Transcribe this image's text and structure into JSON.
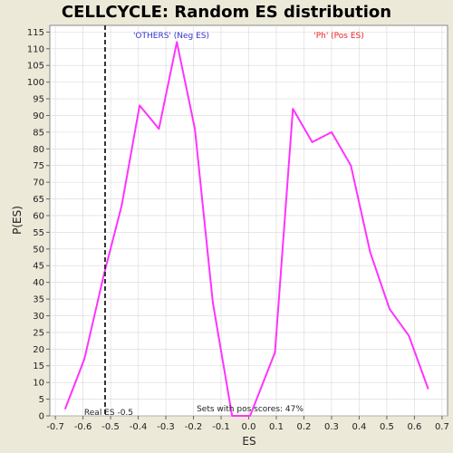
{
  "chart_data": {
    "type": "line",
    "title": "CELLCYCLE: Random ES distribution",
    "xlabel": "ES",
    "ylabel": "P(ES)",
    "xlim": [
      -0.72,
      0.72
    ],
    "ylim": [
      0,
      117
    ],
    "x_ticks": [
      -0.7,
      -0.6,
      -0.5,
      -0.4,
      -0.3,
      -0.2,
      -0.1,
      0.0,
      0.1,
      0.2,
      0.3,
      0.4,
      0.5,
      0.6,
      0.7
    ],
    "y_ticks": [
      0,
      5,
      10,
      15,
      20,
      25,
      30,
      35,
      40,
      45,
      50,
      55,
      60,
      65,
      70,
      75,
      80,
      85,
      90,
      95,
      100,
      105,
      110,
      115
    ],
    "grid": true,
    "series": [
      {
        "color": "#ff33ff",
        "x": [
          -0.665,
          -0.595,
          -0.525,
          -0.46,
          -0.395,
          -0.325,
          -0.26,
          -0.195,
          -0.13,
          -0.06,
          0.005,
          0.095,
          0.16,
          0.23,
          0.3,
          0.37,
          0.44,
          0.51,
          0.58,
          0.65
        ],
        "y": [
          2,
          17,
          42,
          63,
          93,
          86,
          112,
          86,
          34,
          0,
          0,
          19,
          92,
          82,
          85,
          75,
          49,
          32,
          24,
          8
        ]
      }
    ],
    "real_es": {
      "x": -0.52,
      "color": "#333333",
      "label": "Real ES -0.5"
    },
    "annotations": {
      "neg_label": "'OTHERS' (Neg ES)",
      "neg_color": "#3333cc",
      "pos_label": "'Ph' (Pos ES)",
      "pos_color": "#ee2222",
      "pos_scores": "Sets with pos scores: 47%"
    }
  }
}
